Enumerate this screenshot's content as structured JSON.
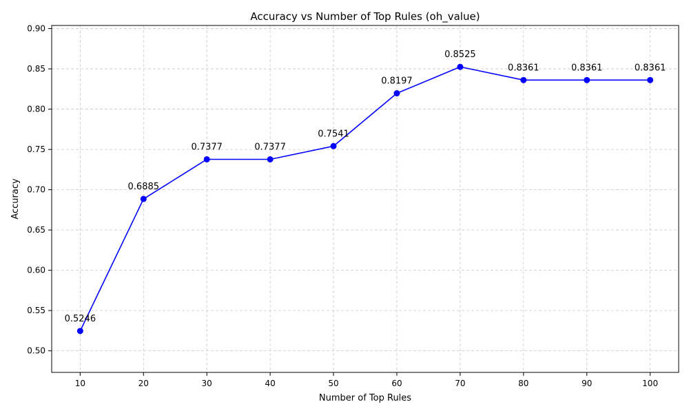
{
  "chart_data": {
    "type": "line",
    "title": "Accuracy vs Number of Top Rules (oh_value)",
    "xlabel": "Number of Top Rules",
    "ylabel": "Accuracy",
    "x": [
      10,
      20,
      30,
      40,
      50,
      60,
      70,
      80,
      90,
      100
    ],
    "xticks": [
      10,
      20,
      30,
      40,
      50,
      60,
      70,
      80,
      90,
      100
    ],
    "yticks": [
      "0.50",
      "0.55",
      "0.60",
      "0.65",
      "0.70",
      "0.75",
      "0.80",
      "0.85",
      "0.90"
    ],
    "xlim": [
      5.5,
      104.5
    ],
    "ylim": [
      0.4732,
      0.9039
    ],
    "grid": true,
    "series": [
      {
        "values": [
          0.5246,
          0.6885,
          0.7377,
          0.7377,
          0.7541,
          0.8197,
          0.8525,
          0.8361,
          0.8361,
          0.8361
        ],
        "labels": [
          "0.5246",
          "0.6885",
          "0.7377",
          "0.7377",
          "0.7541",
          "0.8197",
          "0.8525",
          "0.8361",
          "0.8361",
          "0.8361"
        ],
        "color": "#0000ff",
        "marker": "circle"
      }
    ],
    "colors": {
      "grid": "#c8c8c8",
      "axis": "#000000",
      "line": "#0000ff"
    }
  }
}
